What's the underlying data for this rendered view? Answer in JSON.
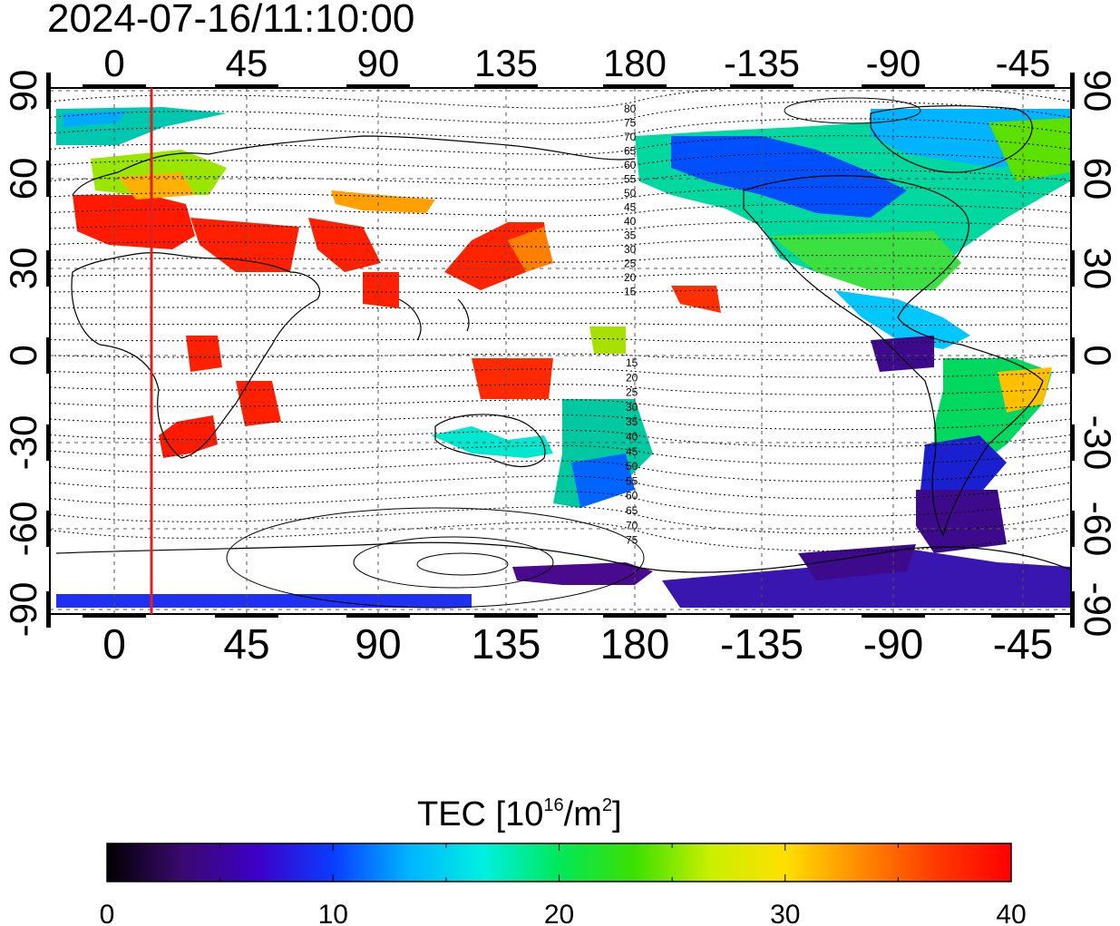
{
  "title": "2024-07-16/11:10:00",
  "map": {
    "top_lon_labels": [
      "0",
      "45",
      "90",
      "135",
      "180",
      "-135",
      "-90",
      "-45"
    ],
    "bottom_lon_labels": [
      "0",
      "45",
      "90",
      "135",
      "180",
      "-135",
      "-90",
      "-45"
    ],
    "left_lat_labels": [
      "90",
      "60",
      "30",
      "0",
      "-30",
      "-60",
      "-90"
    ],
    "right_lat_labels": [
      "90",
      "60",
      "30",
      "0",
      "-30",
      "-60",
      "-90"
    ],
    "terminator_line_color": "#e02020",
    "contour_labels_north": [
      "80",
      "75",
      "70",
      "65",
      "60",
      "55",
      "50",
      "45",
      "40",
      "35",
      "30",
      "25",
      "20",
      "15"
    ],
    "contour_labels_south": [
      "15",
      "20",
      "25",
      "30",
      "35",
      "40",
      "45",
      "50",
      "55",
      "60",
      "65",
      "70",
      "75"
    ]
  },
  "colorbar": {
    "label_text": "TEC  [10",
    "label_exp": "16",
    "label_mid": "/m",
    "label_exp2": "2",
    "label_end": "]",
    "ticks": [
      "0",
      "10",
      "20",
      "30",
      "40"
    ],
    "gradient_stops": [
      "#000000",
      "#3a0a6e",
      "#3d00c8",
      "#0a3cff",
      "#00b4ff",
      "#00f0e0",
      "#00e85a",
      "#3ce000",
      "#c8f000",
      "#ffe000",
      "#ff8a00",
      "#ff3a00",
      "#ff0000"
    ]
  }
}
